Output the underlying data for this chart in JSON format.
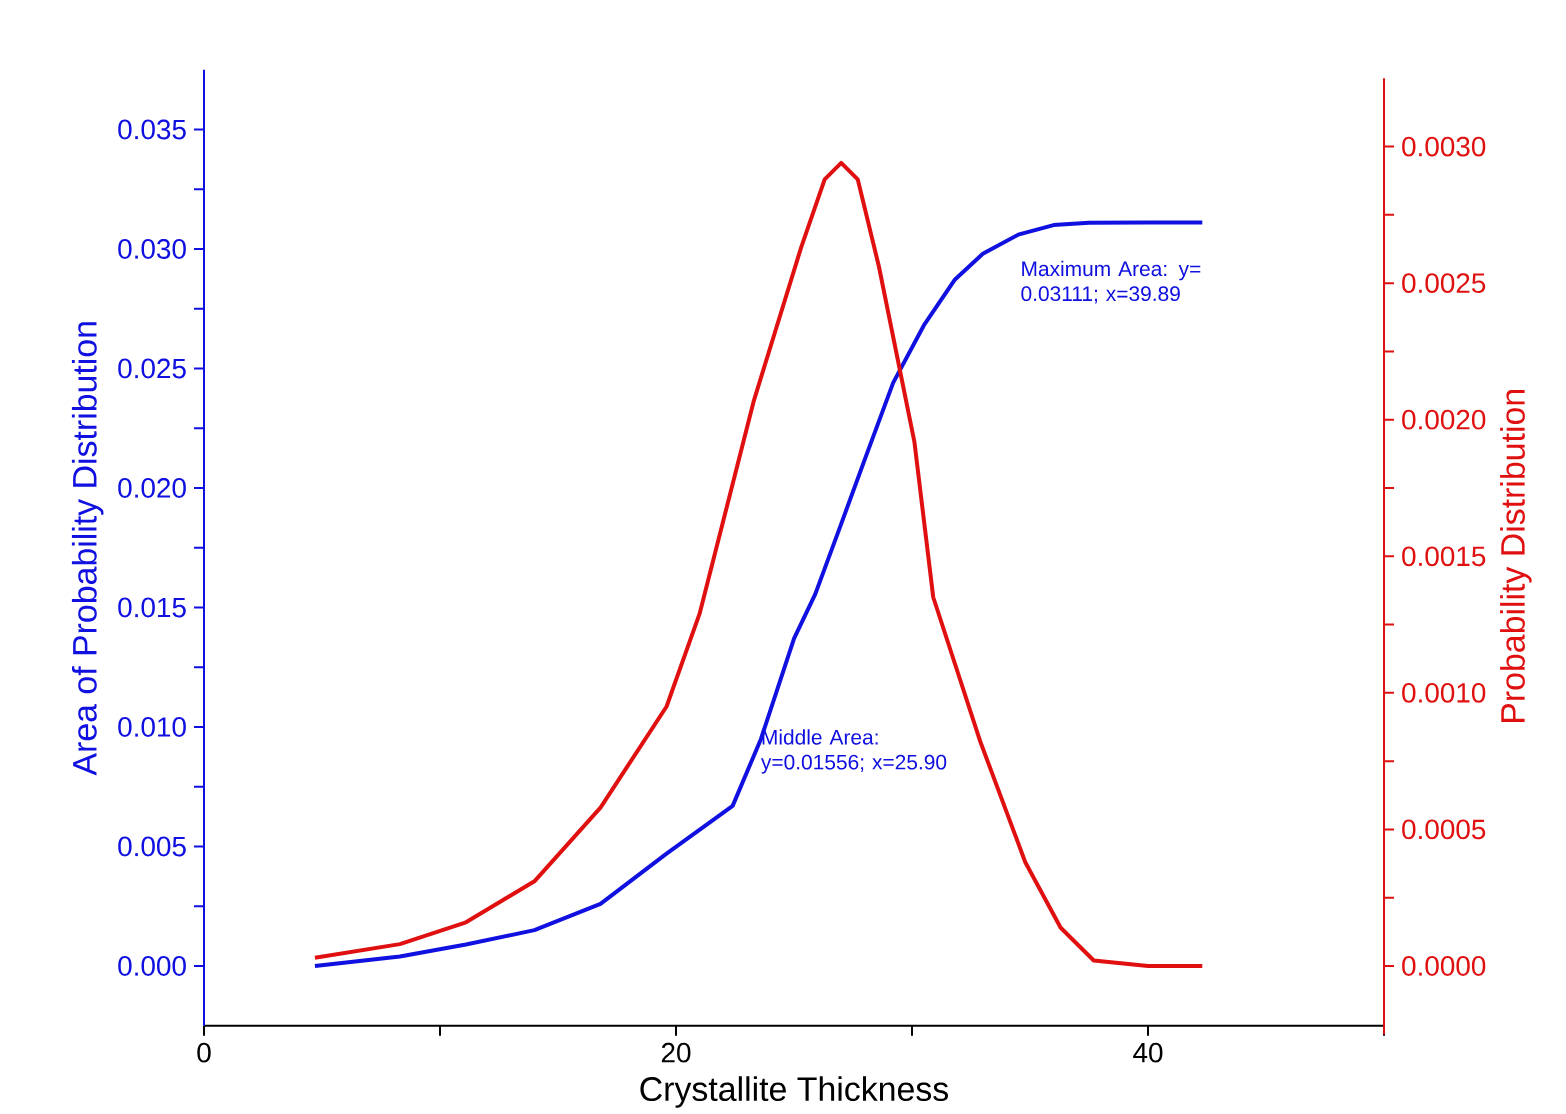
{
  "chart_data": {
    "type": "line",
    "xlabel": "Crystallite Thickness",
    "ylabel": "Area of Probability Distribution",
    "y2label": "Probability Distribution",
    "xlim": [
      0,
      50
    ],
    "xticks": [
      0,
      {
        "value": 10,
        "label": null
      },
      20,
      {
        "value": 30,
        "label": null
      },
      40,
      {
        "value": 50,
        "label": null
      }
    ],
    "ylim": [
      -0.0025,
      0.0375
    ],
    "yticks": [
      {
        "value": 0,
        "label": "0.000"
      },
      {
        "value": 0.0025,
        "label": null
      },
      {
        "value": 0.005,
        "label": "0.005"
      },
      {
        "value": 0.0075,
        "label": null
      },
      {
        "value": 0.01,
        "label": "0.010"
      },
      {
        "value": 0.0125,
        "label": null
      },
      {
        "value": 0.015,
        "label": "0.015"
      },
      {
        "value": 0.0175,
        "label": null
      },
      {
        "value": 0.02,
        "label": "0.020"
      },
      {
        "value": 0.0225,
        "label": null
      },
      {
        "value": 0.025,
        "label": "0.025"
      },
      {
        "value": 0.0275,
        "label": null
      },
      {
        "value": 0.03,
        "label": "0.030"
      },
      {
        "value": 0.0325,
        "label": null
      },
      {
        "value": 0.035,
        "label": "0.035"
      }
    ],
    "y2lim": [
      -0.00025,
      0.00325
    ],
    "y2ticks": [
      {
        "value": 0,
        "label": "0.0000"
      },
      {
        "value": 0.00025,
        "label": null
      },
      {
        "value": 0.0005,
        "label": "0.0005"
      },
      {
        "value": 0.00075,
        "label": null
      },
      {
        "value": 0.001,
        "label": "0.0010"
      },
      {
        "value": 0.00125,
        "label": null
      },
      {
        "value": 0.0015,
        "label": "0.0015"
      },
      {
        "value": 0.00175,
        "label": null
      },
      {
        "value": 0.002,
        "label": "0.0020"
      },
      {
        "value": 0.00225,
        "label": null
      },
      {
        "value": 0.0025,
        "label": "0.0025"
      },
      {
        "value": 0.00275,
        "label": null
      },
      {
        "value": 0.003,
        "label": "0.0030"
      }
    ],
    "series": [
      {
        "color": "#1010e0",
        "x": [
          4.7,
          8.3,
          11.1,
          14,
          16.8,
          19.6,
          22.4,
          23.6,
          25,
          25.9,
          27,
          28,
          29.2,
          30.5,
          31.8,
          33,
          34.5,
          36,
          37.5,
          39.89,
          42.3
        ],
        "values": [
          0,
          0.0004,
          0.0009,
          0.0015,
          0.0026,
          0.0047,
          0.0067,
          0.0095,
          0.0137,
          0.01556,
          0.0185,
          0.0212,
          0.0244,
          0.0268,
          0.0287,
          0.0298,
          0.0306,
          0.031,
          0.0311,
          0.03111,
          0.03111
        ]
      },
      {
        "color": "#e01010",
        "axis": "y2",
        "x": [
          4.7,
          8.3,
          11.1,
          14,
          16.8,
          19.6,
          21,
          23.3,
          25.3,
          26.3,
          27,
          27.7,
          28.6,
          30.1,
          30.9,
          32.9,
          34.8,
          36.3,
          37.7,
          40,
          42.3
        ],
        "values": [
          3e-05,
          8e-05,
          0.00016,
          0.00031,
          0.00058,
          0.00095,
          0.00129,
          0.00207,
          0.00263,
          0.00288,
          0.00294,
          0.00288,
          0.00256,
          0.00192,
          0.00135,
          0.00082,
          0.00038,
          0.00014,
          2e-05,
          0,
          0
        ]
      }
    ],
    "annotations": [
      "Maximum Area: y= 0.03111; x=39.89",
      "Middle Area: y=0.01556; x=25.90"
    ]
  }
}
